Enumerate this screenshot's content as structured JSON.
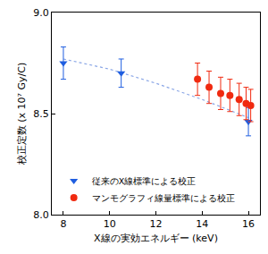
{
  "chart_data": {
    "type": "scatter",
    "x_label": "X線の実効エネルギー (keV)",
    "y_label": "校正定数 (x 10⁷ Gy/C)",
    "xlim": [
      7.5,
      16.5
    ],
    "xticks": [
      8,
      10,
      12,
      14,
      16
    ],
    "ylim": [
      8.0,
      9.0
    ],
    "yticks": [
      {
        "value": 8.0,
        "label": "8.0"
      },
      8.5,
      {
        "value": 9.0,
        "label": "9.0"
      }
    ],
    "grid": false,
    "legend": "lower left",
    "series": [
      {
        "type": "line",
        "line_style": "dotted",
        "color": "#8aa6e6",
        "x": [
          8,
          10,
          12,
          14,
          16
        ],
        "values": [
          8.77,
          8.72,
          8.65,
          8.57,
          8.48
        ]
      },
      {
        "name": "従来のX線標準による校正",
        "type": "scatter",
        "marker": "triangle-down",
        "color": "#1f5ee0",
        "x": [
          8.0,
          10.5,
          16.0
        ],
        "values": [
          8.75,
          8.7,
          8.46
        ],
        "errors": [
          0.08,
          0.07,
          0.07
        ]
      },
      {
        "name": "マンモグラフィ線量標準による校正",
        "type": "scatter",
        "marker": "circle",
        "color": "#f02a10",
        "x": [
          13.8,
          14.3,
          14.8,
          15.2,
          15.6,
          15.9,
          16.1
        ],
        "values": [
          8.67,
          8.63,
          8.6,
          8.59,
          8.57,
          8.55,
          8.54
        ],
        "errors": [
          0.08,
          0.08,
          0.08,
          0.08,
          0.08,
          0.08,
          0.08
        ]
      }
    ]
  }
}
